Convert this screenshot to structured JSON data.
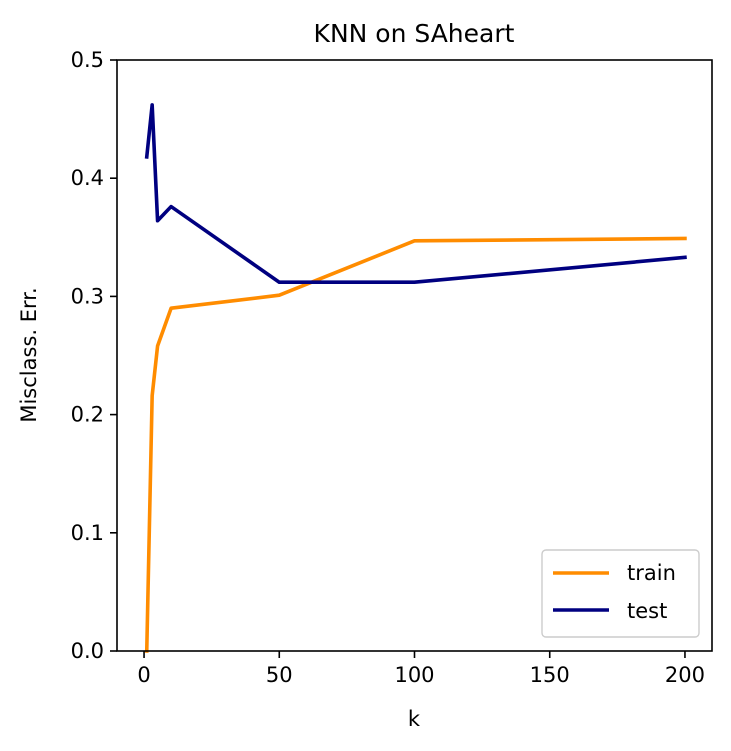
{
  "chart_data": {
    "type": "line",
    "title": "KNN on SAheart",
    "xlabel": "k",
    "ylabel": "Misclass. Err.",
    "xlim": [
      -10,
      210
    ],
    "ylim": [
      0,
      0.5
    ],
    "xticks": [
      0,
      50,
      100,
      150,
      200
    ],
    "xtick_labels": [
      "0",
      "50",
      "100",
      "150",
      "200"
    ],
    "yticks": [
      0.0,
      0.1,
      0.2,
      0.3,
      0.4,
      0.5
    ],
    "ytick_labels": [
      "0.0",
      "0.1",
      "0.2",
      "0.3",
      "0.4",
      "0.5"
    ],
    "grid": false,
    "legend_position": "bottom-right",
    "series": [
      {
        "name": "train",
        "color": "#ff8c00",
        "x": [
          1,
          3,
          5,
          10,
          50,
          100,
          200
        ],
        "y": [
          0.0,
          0.216,
          0.258,
          0.29,
          0.301,
          0.347,
          0.349
        ]
      },
      {
        "name": "test",
        "color": "#000080",
        "x": [
          1,
          3,
          5,
          10,
          50,
          100,
          200
        ],
        "y": [
          0.418,
          0.462,
          0.364,
          0.376,
          0.312,
          0.312,
          0.333
        ]
      }
    ]
  }
}
